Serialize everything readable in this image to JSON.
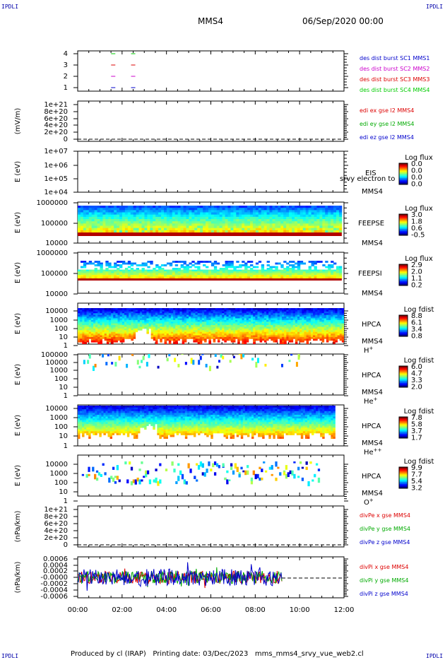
{
  "header": {
    "spacecraft": "MMS4",
    "datetime": "06/Sep/2020 00:00",
    "corner_label": "IPDLI"
  },
  "footer": {
    "produced_by": "Produced by cl (IRAP)",
    "printing_date": "Printing date: 03/Dec/2023",
    "script_name": "mms_mms4_srvy_vue_web2.cl"
  },
  "chart_data": [
    {
      "panel": "burst",
      "type": "scatter",
      "y_ticks": [
        "4",
        "3",
        "2",
        "1"
      ],
      "y_values": [
        4,
        3,
        2,
        1
      ],
      "series": [
        {
          "name": "des dist burst SC1 MMS1",
          "color": "#0000cc",
          "y": 1,
          "x_hours": [
            1.6,
            2.5
          ]
        },
        {
          "name": "des dist burst SC2 MMS2",
          "color": "#cc00cc",
          "y": 2,
          "x_hours": [
            1.6,
            2.5
          ]
        },
        {
          "name": "des dist burst SC3 MMS3",
          "color": "#dd0000",
          "y": 3,
          "x_hours": [
            1.6,
            2.5
          ]
        },
        {
          "name": "des dist burst SC4 MMS4",
          "color": "#00cc00",
          "y": 4,
          "x_hours": [
            1.6,
            2.5
          ]
        }
      ]
    },
    {
      "panel": "edi",
      "type": "line",
      "ylabel": "(mV/m)",
      "y_ticks": [
        "1e+21",
        "8e+20",
        "6e+20",
        "4e+20",
        "2e+20",
        "0"
      ],
      "y_values": [
        1e+21,
        8e+20,
        6e+20,
        4e+20,
        2e+20,
        0
      ],
      "series": [
        {
          "name": "edi ex gse l2 MMS4",
          "color": "#dd0000"
        },
        {
          "name": "edi ey gse l2 MMS4",
          "color": "#00aa00"
        },
        {
          "name": "edi ez gse l2 MMS4",
          "color": "#0000cc"
        }
      ]
    },
    {
      "panel": "eis",
      "type": "heatmap",
      "ylabel": "E (eV)",
      "y_ticks": [
        "1e+07",
        "1e+06",
        "1e+05",
        "1e+04"
      ],
      "y_values": [
        10000000.0,
        1000000.0,
        100000.0,
        10000.0
      ],
      "instrument": "EIS",
      "spacecraft": "MMS4",
      "overlay_text": "srvy electron to",
      "colorbar_title": "Log flux",
      "colorbar_ticks": [
        "0.0",
        "0.0",
        "0.0",
        "0.0"
      ],
      "has_data": false
    },
    {
      "panel": "feeps_e",
      "type": "heatmap",
      "ylabel": "E (eV)",
      "y_ticks": [
        "1000000",
        "100000",
        "10000"
      ],
      "y_values": [
        1000000,
        100000,
        10000
      ],
      "instrument": "FEEPSE",
      "spacecraft": "MMS4",
      "colorbar_title": "Log flux",
      "colorbar_ticks": [
        "3.0",
        "1.8",
        "0.6",
        "-0.5"
      ],
      "colorbar_range": [
        -0.5,
        3.0
      ],
      "x_range_hours": [
        0,
        11.9
      ]
    },
    {
      "panel": "feeps_i",
      "type": "heatmap",
      "ylabel": "E (eV)",
      "y_ticks": [
        "1000000",
        "100000",
        "10000"
      ],
      "y_values": [
        1000000,
        100000,
        10000
      ],
      "instrument": "FEEPSI",
      "spacecraft": "MMS4",
      "colorbar_title": "Log flux",
      "colorbar_ticks": [
        "2.9",
        "2.0",
        "1.1",
        "0.2"
      ],
      "colorbar_range": [
        0.2,
        2.9
      ],
      "x_range_hours": [
        0,
        11.9
      ]
    },
    {
      "panel": "hpca_h",
      "type": "heatmap",
      "ylabel": "E (eV)",
      "y_ticks": [
        "10000",
        "1000",
        "100",
        "10",
        "1"
      ],
      "y_values": [
        10000,
        1000,
        100,
        10,
        1
      ],
      "instrument": "HPCA",
      "spacecraft": "MMS4",
      "species": "H",
      "species_sup": "+",
      "colorbar_title": "Log fdist",
      "colorbar_ticks": [
        "8.8",
        "6.1",
        "3.4",
        "0.8"
      ],
      "colorbar_range": [
        0.8,
        8.8
      ],
      "x_range_hours": [
        0,
        12
      ]
    },
    {
      "panel": "hpca_he",
      "type": "heatmap",
      "ylabel": "E (eV)",
      "y_ticks": [
        "100000",
        "10000",
        "1000",
        "100",
        "10",
        "1"
      ],
      "y_values": [
        100000,
        10000,
        1000,
        100,
        10,
        1
      ],
      "instrument": "HPCA",
      "spacecraft": "MMS4",
      "species": "He",
      "species_sup": "+",
      "colorbar_title": "Log fdist",
      "colorbar_ticks": [
        "6.0",
        "4.7",
        "3.3",
        "2.0"
      ],
      "colorbar_range": [
        2.0,
        6.0
      ],
      "x_range_hours": [
        0,
        10
      ]
    },
    {
      "panel": "hpca_hepp",
      "type": "heatmap",
      "ylabel": "E (eV)",
      "y_ticks": [
        "10000",
        "1000",
        "100",
        "10",
        "1"
      ],
      "y_values": [
        10000,
        1000,
        100,
        10,
        1
      ],
      "instrument": "HPCA",
      "spacecraft": "MMS4",
      "species": "He",
      "species_sup": "++",
      "colorbar_title": "Log fdist",
      "colorbar_ticks": [
        "7.8",
        "5.8",
        "3.7",
        "1.7"
      ],
      "colorbar_range": [
        1.7,
        7.8
      ],
      "x_range_hours": [
        0,
        11.6
      ]
    },
    {
      "panel": "hpca_o",
      "type": "heatmap",
      "ylabel": "E (eV)",
      "y_ticks": [
        "10000",
        "1000",
        "100",
        "10",
        "1"
      ],
      "y_values": [
        10000,
        1000,
        100,
        10,
        1
      ],
      "instrument": "HPCA",
      "spacecraft": "MMS4",
      "species": "O",
      "species_sup": "+",
      "colorbar_title": "Log fdist",
      "colorbar_ticks": [
        "9.9",
        "7.7",
        "5.4",
        "3.2"
      ],
      "colorbar_range": [
        3.2,
        9.9
      ],
      "x_range_hours": [
        0,
        11
      ]
    },
    {
      "panel": "divpe",
      "type": "line",
      "ylabel": "(nPa/km)",
      "y_ticks": [
        "1e+21",
        "8e+20",
        "6e+20",
        "4e+20",
        "2e+20",
        "0"
      ],
      "y_values": [
        1e+21,
        8e+20,
        6e+20,
        4e+20,
        2e+20,
        0
      ],
      "series": [
        {
          "name": "divPe x gse MMS4",
          "color": "#dd0000"
        },
        {
          "name": "divPe y gse MMS4",
          "color": "#00aa00"
        },
        {
          "name": "divPe z gse MMS4",
          "color": "#0000cc"
        }
      ]
    },
    {
      "panel": "divpi",
      "type": "line",
      "ylabel": "(nPa/km)",
      "y_ticks": [
        "0.0006",
        "0.0004",
        "0.0002",
        "-0.0000",
        "-0.0002",
        "-0.0004",
        "-0.0006"
      ],
      "y_values": [
        0.0006,
        0.0004,
        0.0002,
        0,
        -0.0002,
        -0.0004,
        -0.0006
      ],
      "x_range_hours": [
        0,
        9.2
      ],
      "series": [
        {
          "name": "divPi x gse MMS4",
          "color": "#dd0000"
        },
        {
          "name": "divPi y gse MMS4",
          "color": "#00aa00"
        },
        {
          "name": "divPi z gse MMS4",
          "color": "#0000cc"
        }
      ]
    }
  ],
  "x_axis": {
    "range_hours": [
      0,
      12
    ],
    "tick_labels": [
      "00:00",
      "02:00",
      "04:00",
      "06:00",
      "08:00",
      "10:00",
      "12:00"
    ]
  }
}
